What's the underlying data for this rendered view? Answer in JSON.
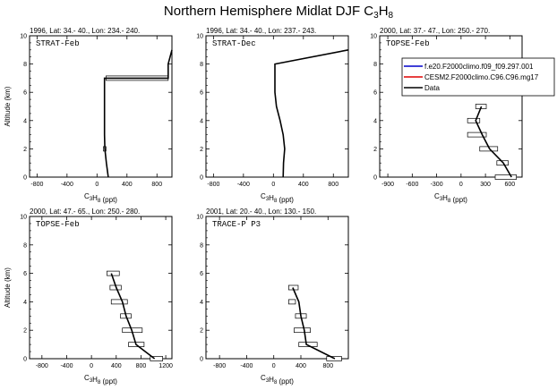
{
  "title": {
    "main": "Northern Hemisphere Midlat DJF C",
    "sub": "3",
    "main2": "H",
    "sub2": "8"
  },
  "legend": [
    {
      "label": "f.e20.F2000climo.f09_f09.297.001",
      "color": "#0000cc"
    },
    {
      "label": "CESM2.F2000climo.C96.C96.mg17",
      "color": "#e00000"
    },
    {
      "label": "Data",
      "color": "#000000"
    }
  ],
  "chart_data": [
    {
      "type": "line",
      "panel": "STRAT-Feb",
      "header": "1996, Lat: 34.- 40., Lon: 234.- 240.",
      "xlabel": "C3H8 (ppt)",
      "ylabel": "Altitude (km)",
      "xlim": [
        -900,
        1000
      ],
      "ylim": [
        0,
        10
      ],
      "xticks": [
        -800,
        -400,
        0,
        400,
        800
      ],
      "yticks": [
        0,
        2,
        4,
        6,
        8,
        10
      ],
      "series": [
        {
          "name": "Data",
          "x": [
            150,
            125,
            105,
            100,
            100,
            950,
            950,
            1000
          ],
          "y": [
            0,
            1,
            2,
            3,
            7,
            7,
            8,
            9
          ]
        }
      ],
      "errorbars": [
        {
          "y": 2,
          "lo": 85,
          "hi": 120
        },
        {
          "y": 7,
          "lo": 120,
          "hi": 950
        }
      ]
    },
    {
      "type": "line",
      "panel": "STRAT-Dec",
      "header": "1996, Lat: 34.- 40., Lon: 237.- 243.",
      "xlabel": "C3H8 (ppt)",
      "ylabel": "",
      "xlim": [
        -900,
        1000
      ],
      "ylim": [
        0,
        10
      ],
      "xticks": [
        -800,
        -400,
        0,
        400,
        800
      ],
      "yticks": [
        0,
        2,
        4,
        6,
        8,
        10
      ],
      "series": [
        {
          "name": "Data",
          "x": [
            130,
            135,
            150,
            130,
            90,
            40,
            20,
            20,
            1000
          ],
          "y": [
            0,
            1,
            2,
            3,
            4,
            5,
            6,
            8,
            9
          ]
        }
      ],
      "errorbars": []
    },
    {
      "type": "line",
      "panel": "TOPSE-Feb",
      "header": "2000, Lat: 37.- 47., Lon: 250.- 270.",
      "xlabel": "C3H8 (ppt)",
      "ylabel": "",
      "xlim": [
        -1000,
        750
      ],
      "ylim": [
        0,
        10
      ],
      "xticks": [
        -900,
        -600,
        -300,
        0,
        300,
        600
      ],
      "yticks": [
        0,
        2,
        4,
        6,
        8,
        10
      ],
      "series": [
        {
          "name": "Data",
          "x": [
            620,
            520,
            350,
            260,
            180,
            250
          ],
          "y": [
            0,
            1,
            2,
            3,
            4,
            5
          ]
        }
      ],
      "errorbars": [
        {
          "y": 0,
          "lo": 420,
          "hi": 680
        },
        {
          "y": 1,
          "lo": 440,
          "hi": 580
        },
        {
          "y": 2,
          "lo": 230,
          "hi": 450
        },
        {
          "y": 3,
          "lo": 80,
          "hi": 310
        },
        {
          "y": 4,
          "lo": 80,
          "hi": 230
        },
        {
          "y": 5,
          "lo": 180,
          "hi": 310
        }
      ]
    },
    {
      "type": "line",
      "panel": "TOPSE-Feb",
      "header": "2000, Lat: 47.- 65., Lon: 250.- 280.",
      "xlabel": "C3H8 (ppt)",
      "ylabel": "Altitude (km)",
      "xlim": [
        -1000,
        1300
      ],
      "ylim": [
        0,
        10
      ],
      "xticks": [
        -800,
        -400,
        0,
        400,
        800,
        1200
      ],
      "yticks": [
        0,
        2,
        4,
        6,
        8,
        10
      ],
      "series": [
        {
          "name": "Data",
          "x": [
            1020,
            720,
            650,
            560,
            500,
            400,
            320
          ],
          "y": [
            0,
            1,
            2,
            3,
            4,
            5,
            6
          ]
        }
      ],
      "errorbars": [
        {
          "y": 0,
          "lo": 950,
          "hi": 1150
        },
        {
          "y": 1,
          "lo": 600,
          "hi": 850
        },
        {
          "y": 2,
          "lo": 500,
          "hi": 820
        },
        {
          "y": 3,
          "lo": 470,
          "hi": 640
        },
        {
          "y": 4,
          "lo": 320,
          "hi": 580
        },
        {
          "y": 5,
          "lo": 300,
          "hi": 480
        },
        {
          "y": 6,
          "lo": 250,
          "hi": 450
        }
      ]
    },
    {
      "type": "line",
      "panel": "TRACE-P P3",
      "header": "2001, Lat: 20.- 40., Lon: 130.- 150.",
      "xlabel": "C3H8 (ppt)",
      "ylabel": "",
      "xlim": [
        -1000,
        1100
      ],
      "ylim": [
        0,
        10
      ],
      "xticks": [
        -800,
        -400,
        0,
        400,
        800
      ],
      "yticks": [
        0,
        2,
        4,
        6,
        8,
        10
      ],
      "series": [
        {
          "name": "Data",
          "x": [
            900,
            480,
            450,
            400,
            370,
            280,
            280
          ],
          "y": [
            0,
            1,
            2,
            3,
            4,
            5,
            5
          ]
        }
      ],
      "errorbars": [
        {
          "y": 0,
          "lo": 780,
          "hi": 1000
        },
        {
          "y": 1,
          "lo": 370,
          "hi": 640
        },
        {
          "y": 2,
          "lo": 300,
          "hi": 540
        },
        {
          "y": 3,
          "lo": 320,
          "hi": 480
        },
        {
          "y": 4,
          "lo": 220,
          "hi": 320
        },
        {
          "y": 5,
          "lo": 220,
          "hi": 360
        }
      ]
    }
  ]
}
